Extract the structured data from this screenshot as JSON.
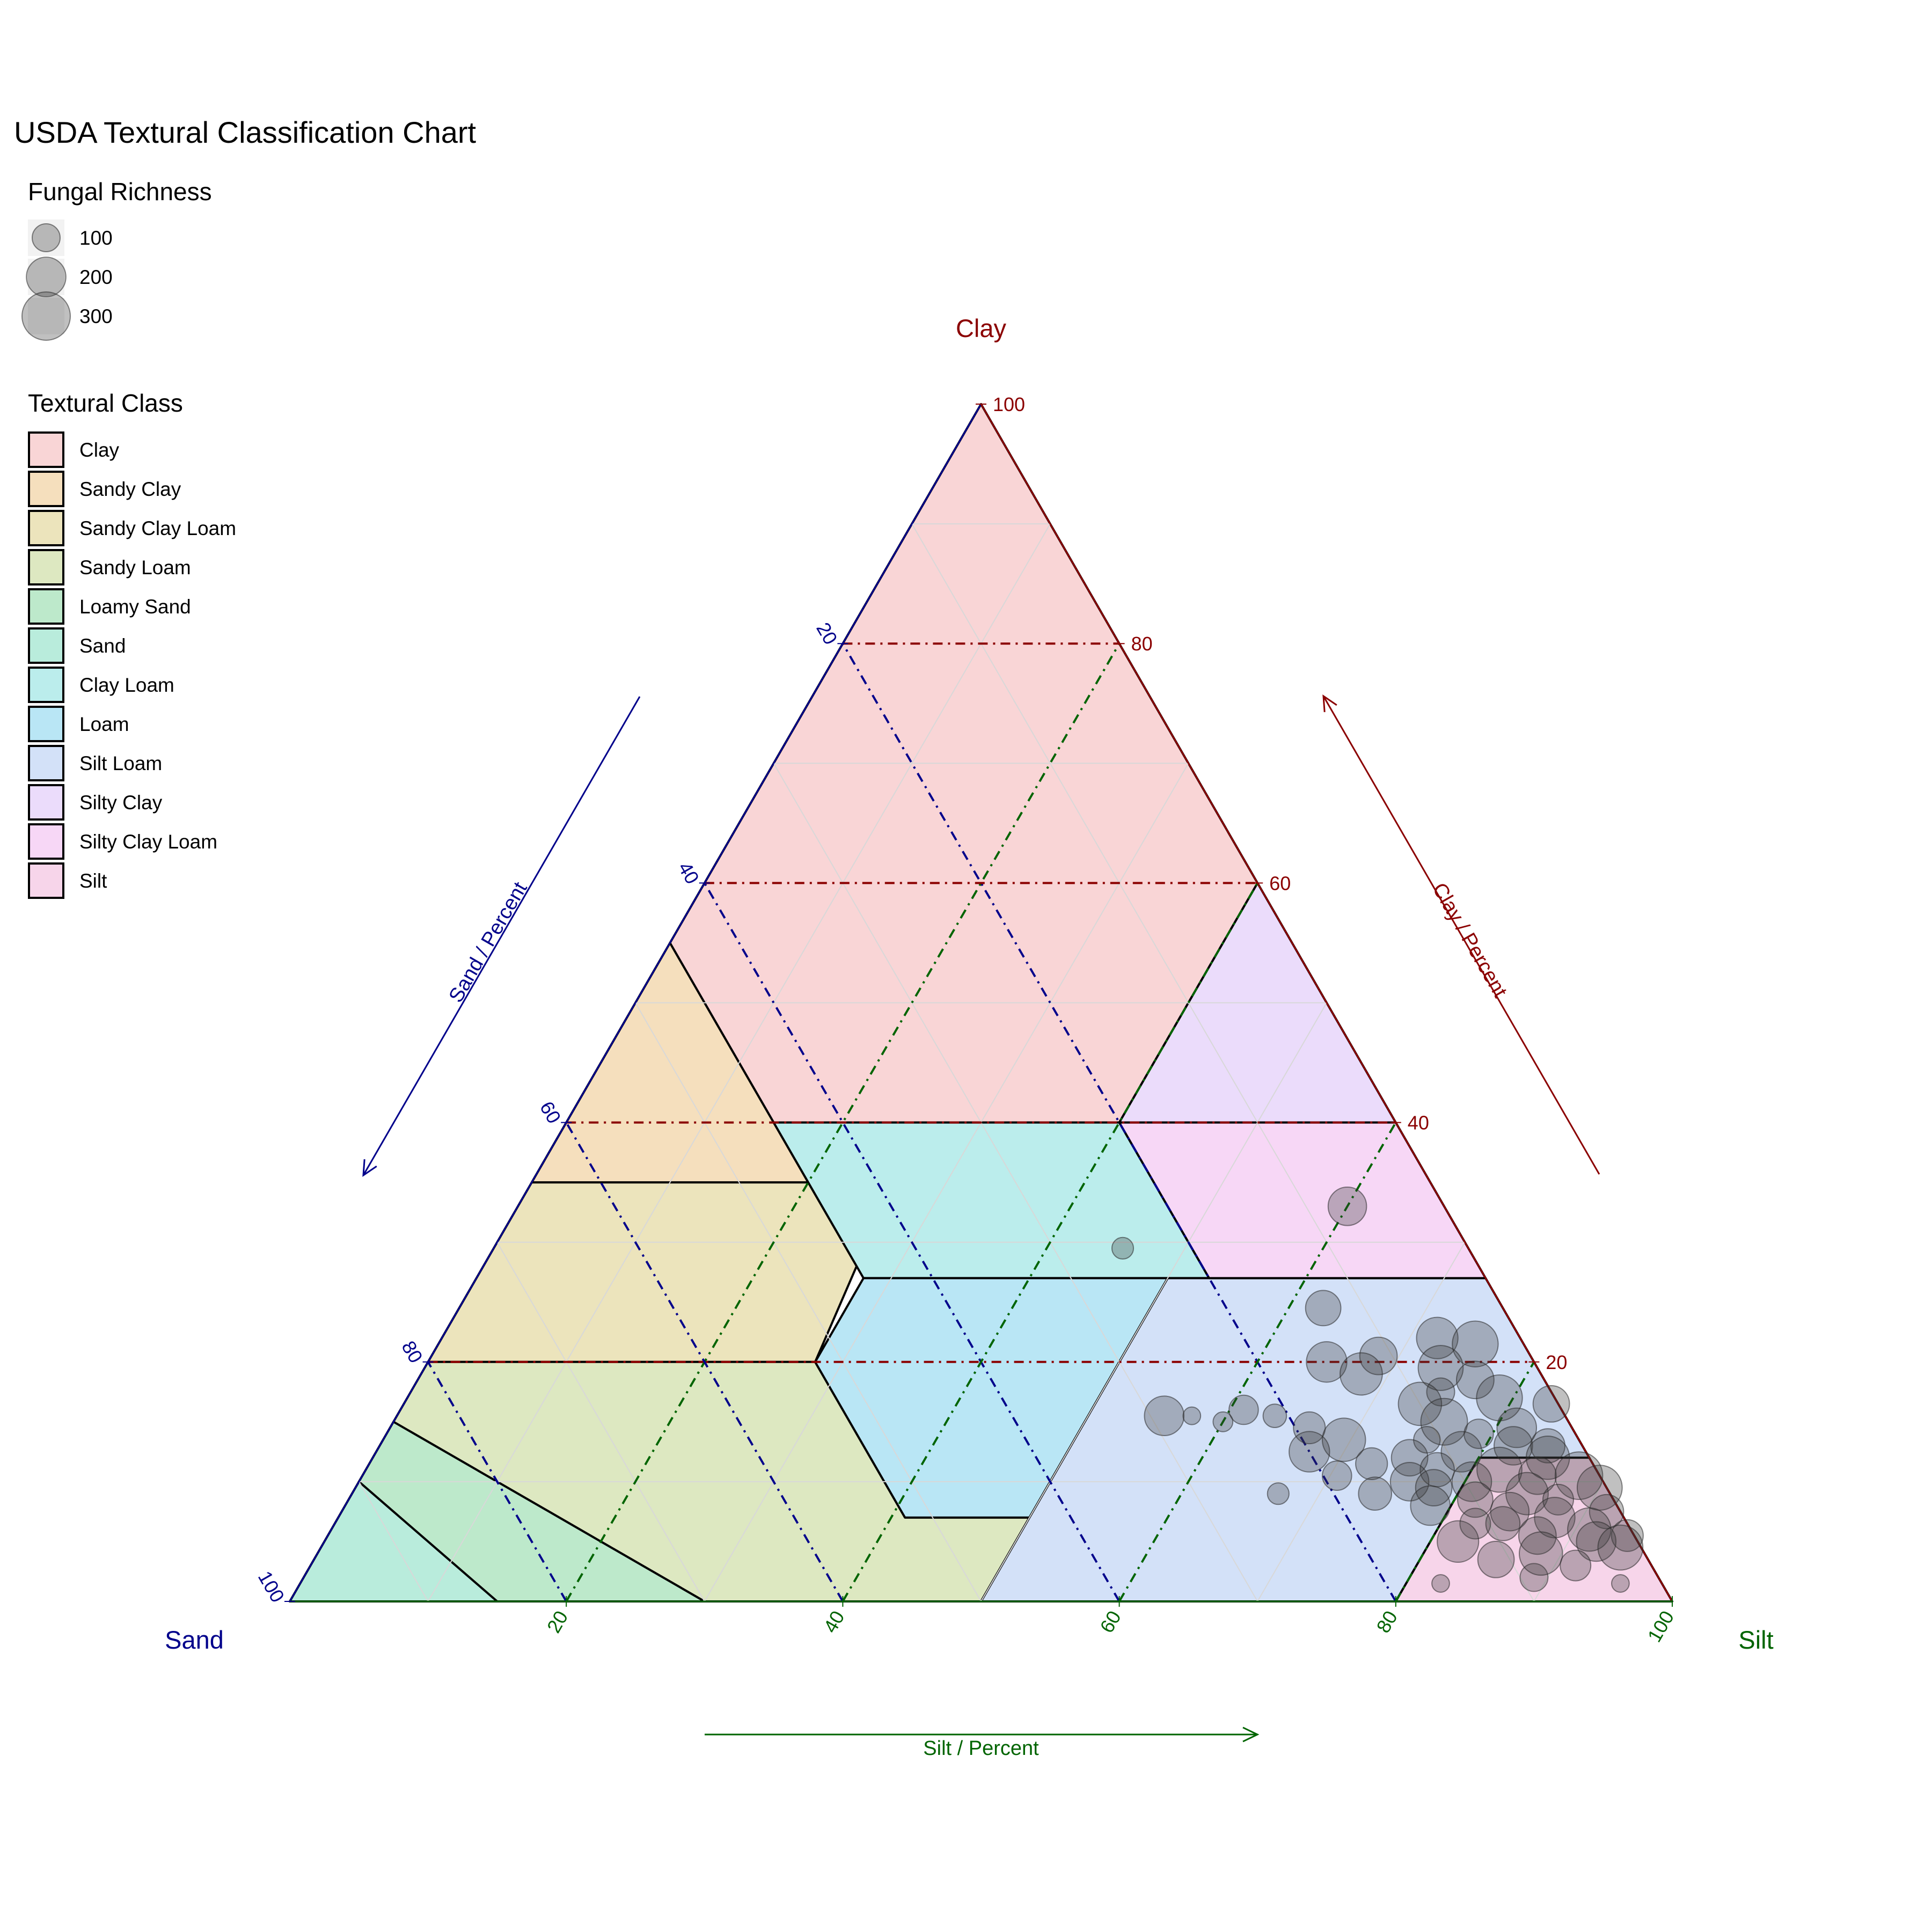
{
  "chart_data": {
    "type": "scatter",
    "subtype": "ternary",
    "title": "USDA Textural Classification Chart",
    "vertices": {
      "top": "Clay",
      "left": "Sand",
      "right": "Silt"
    },
    "axes": {
      "clay": {
        "title": "Clay",
        "arrow_label": "Clay / Percent",
        "color": "#8b0000",
        "ticks": [
          20,
          40,
          60,
          80,
          100
        ]
      },
      "sand": {
        "title": "Sand",
        "arrow_label": "Sand / Percent",
        "color": "#00008b",
        "ticks": [
          20,
          40,
          60,
          80,
          100
        ]
      },
      "silt": {
        "title": "Silt",
        "arrow_label": "Silt / Percent",
        "color": "#006400",
        "ticks": [
          20,
          40,
          60,
          80,
          100
        ]
      }
    },
    "ranges": {
      "clay": [
        0,
        100
      ],
      "sand": [
        0,
        100
      ],
      "silt": [
        0,
        100
      ]
    },
    "grid": true,
    "legend_position": "top-left",
    "size_legend": {
      "title": "Fungal Richness",
      "entries": [
        {
          "label": "100",
          "value": 100
        },
        {
          "label": "200",
          "value": 200
        },
        {
          "label": "300",
          "value": 300
        }
      ]
    },
    "classes_legend": {
      "title": "Textural Class",
      "entries": [
        {
          "label": "Clay",
          "color": "#f9d5d6"
        },
        {
          "label": "Sandy Clay",
          "color": "#f5dfbd"
        },
        {
          "label": "Sandy Clay Loam",
          "color": "#ece4bc"
        },
        {
          "label": "Sandy Loam",
          "color": "#dde8c1"
        },
        {
          "label": "Loamy Sand",
          "color": "#bde9cb"
        },
        {
          "label": "Sand",
          "color": "#b9ecdc"
        },
        {
          "label": "Clay Loam",
          "color": "#bbedec"
        },
        {
          "label": "Loam",
          "color": "#b9e6f5"
        },
        {
          "label": "Silt Loam",
          "color": "#d3e1f8"
        },
        {
          "label": "Silty Clay",
          "color": "#ebdcfb"
        },
        {
          "label": "Silty Clay Loam",
          "color": "#f7d7f6"
        },
        {
          "label": "Silt",
          "color": "#f7d5ea"
        }
      ]
    },
    "classes": [
      {
        "name": "Clay",
        "vertices": [
          [
            100,
            0,
            0
          ],
          [
            55,
            45,
            0
          ],
          [
            40,
            45,
            15
          ],
          [
            40,
            20,
            40
          ],
          [
            60,
            0,
            40
          ]
        ]
      },
      {
        "name": "Sandy Clay",
        "vertices": [
          [
            55,
            45,
            0
          ],
          [
            35,
            65,
            0
          ],
          [
            35,
            45,
            20
          ]
        ]
      },
      {
        "name": "Sandy Clay Loam",
        "vertices": [
          [
            35,
            65,
            0
          ],
          [
            35,
            45,
            20
          ],
          [
            28,
            45,
            27
          ],
          [
            20,
            52,
            28
          ],
          [
            20,
            80,
            0
          ]
        ]
      },
      {
        "name": "Sandy Loam",
        "vertices": [
          [
            20,
            80,
            0
          ],
          [
            20,
            52,
            28
          ],
          [
            7,
            52,
            41
          ],
          [
            7,
            43,
            50
          ],
          [
            0,
            50,
            50
          ],
          [
            0,
            70,
            30
          ],
          [
            15,
            85,
            0
          ]
        ]
      },
      {
        "name": "Loamy Sand",
        "vertices": [
          [
            15,
            85,
            0
          ],
          [
            0,
            70,
            30
          ],
          [
            0,
            85,
            15
          ],
          [
            10,
            90,
            0
          ]
        ]
      },
      {
        "name": "Sand",
        "vertices": [
          [
            10,
            90,
            0
          ],
          [
            0,
            85,
            15
          ],
          [
            0,
            100,
            0
          ]
        ]
      },
      {
        "name": "Clay Loam",
        "vertices": [
          [
            40,
            45,
            15
          ],
          [
            27,
            45,
            28
          ],
          [
            27,
            20,
            53
          ],
          [
            40,
            20,
            40
          ]
        ]
      },
      {
        "name": "Loam",
        "vertices": [
          [
            27,
            45,
            28
          ],
          [
            20,
            52,
            28
          ],
          [
            7,
            52,
            41
          ],
          [
            7,
            43,
            50
          ],
          [
            27,
            23,
            50
          ]
        ]
      },
      {
        "name": "Silt Loam",
        "vertices": [
          [
            27,
            23,
            50
          ],
          [
            27,
            0,
            73
          ],
          [
            12,
            0,
            88
          ],
          [
            12,
            8,
            80
          ],
          [
            0,
            20,
            80
          ],
          [
            0,
            50,
            50
          ],
          [
            7,
            43,
            50
          ]
        ]
      },
      {
        "name": "Silty Clay",
        "vertices": [
          [
            60,
            0,
            40
          ],
          [
            40,
            20,
            40
          ],
          [
            40,
            0,
            60
          ]
        ]
      },
      {
        "name": "Silty Clay Loam",
        "vertices": [
          [
            40,
            20,
            40
          ],
          [
            27,
            20,
            53
          ],
          [
            27,
            0,
            73
          ],
          [
            40,
            0,
            60
          ]
        ]
      },
      {
        "name": "Silt",
        "vertices": [
          [
            12,
            8,
            80
          ],
          [
            12,
            0,
            88
          ],
          [
            0,
            0,
            100
          ],
          [
            0,
            20,
            80
          ]
        ]
      }
    ],
    "points": [
      {
        "clay": 33,
        "sand": 7,
        "silt": 60,
        "richness": 190
      },
      {
        "clay": 29.5,
        "sand": 25,
        "silt": 45.5,
        "richness": 60
      },
      {
        "clay": 24.5,
        "sand": 13,
        "silt": 62.5,
        "richness": 160
      },
      {
        "clay": 22,
        "sand": 6,
        "silt": 72,
        "richness": 220
      },
      {
        "clay": 21.5,
        "sand": 3.5,
        "silt": 75,
        "richness": 270
      },
      {
        "clay": 20.5,
        "sand": 11,
        "silt": 68.5,
        "richness": 180
      },
      {
        "clay": 20,
        "sand": 15,
        "silt": 65,
        "richness": 210
      },
      {
        "clay": 19.5,
        "sand": 7,
        "silt": 73.5,
        "richness": 260
      },
      {
        "clay": 19,
        "sand": 13,
        "silt": 68,
        "richness": 230
      },
      {
        "clay": 18.5,
        "sand": 5,
        "silt": 76.5,
        "richness": 180
      },
      {
        "clay": 17.5,
        "sand": 8,
        "silt": 74.5,
        "richness": 100
      },
      {
        "clay": 17,
        "sand": 4,
        "silt": 79,
        "richness": 270
      },
      {
        "clay": 16.5,
        "sand": 10,
        "silt": 73.5,
        "richness": 240
      },
      {
        "clay": 16,
        "sand": 23,
        "silt": 61,
        "richness": 110
      },
      {
        "clay": 15.5,
        "sand": 29,
        "silt": 55.5,
        "richness": 200
      },
      {
        "clay": 15.5,
        "sand": 21,
        "silt": 63.5,
        "richness": 70
      },
      {
        "clay": 15.5,
        "sand": 27,
        "silt": 57.5,
        "richness": 40
      },
      {
        "clay": 15,
        "sand": 9,
        "silt": 76,
        "richness": 280
      },
      {
        "clay": 15,
        "sand": 25,
        "silt": 60,
        "richness": 50
      },
      {
        "clay": 14.5,
        "sand": 4,
        "silt": 81.5,
        "richness": 200
      },
      {
        "clay": 14.5,
        "sand": 19,
        "silt": 66.5,
        "richness": 130
      },
      {
        "clay": 14,
        "sand": 7,
        "silt": 79,
        "richness": 110
      },
      {
        "clay": 13.5,
        "sand": 11,
        "silt": 75.5,
        "richness": 90
      },
      {
        "clay": 13.5,
        "sand": 17,
        "silt": 69.5,
        "richness": 240
      },
      {
        "clay": 13,
        "sand": 5,
        "silt": 82,
        "richness": 190
      },
      {
        "clay": 13,
        "sand": 2.5,
        "silt": 84.5,
        "richness": 150
      },
      {
        "clay": 12.5,
        "sand": 9,
        "silt": 78.5,
        "richness": 210
      },
      {
        "clay": 12.5,
        "sand": 20,
        "silt": 67.5,
        "richness": 210
      },
      {
        "clay": 12,
        "sand": 13,
        "silt": 75,
        "richness": 170
      },
      {
        "clay": 12,
        "sand": 3,
        "silt": 85,
        "richness": 240
      },
      {
        "clay": 11.5,
        "sand": 16,
        "silt": 72.5,
        "richness": 130
      },
      {
        "clay": 11,
        "sand": 7,
        "silt": 82,
        "richness": 260
      },
      {
        "clay": 11,
        "sand": 11.5,
        "silt": 77.5,
        "richness": 150
      },
      {
        "clay": 10.5,
        "sand": 1.5,
        "silt": 88,
        "richness": 290
      },
      {
        "clay": 10.5,
        "sand": 4.5,
        "silt": 85,
        "richness": 180
      },
      {
        "clay": 10,
        "sand": 14,
        "silt": 76,
        "richness": 190
      },
      {
        "clay": 10,
        "sand": 9.5,
        "silt": 80.5,
        "richness": 200
      },
      {
        "clay": 9.5,
        "sand": 12.5,
        "silt": 78,
        "richness": 170
      },
      {
        "clay": 9.5,
        "sand": 0.5,
        "silt": 90,
        "richness": 260
      },
      {
        "clay": 9,
        "sand": 17,
        "silt": 74,
        "richness": 140
      },
      {
        "clay": 9,
        "sand": 6,
        "silt": 85,
        "richness": 230
      },
      {
        "clay": 8.5,
        "sand": 10,
        "silt": 81.5,
        "richness": 160
      },
      {
        "clay": 8.5,
        "sand": 4,
        "silt": 87.5,
        "richness": 120
      },
      {
        "clay": 8,
        "sand": 13.5,
        "silt": 78.5,
        "richness": 200
      },
      {
        "clay": 7.5,
        "sand": 8,
        "silt": 84.5,
        "richness": 190
      },
      {
        "clay": 7.5,
        "sand": 1,
        "silt": 91.5,
        "richness": 150
      },
      {
        "clay": 7,
        "sand": 5,
        "silt": 88,
        "richness": 210
      },
      {
        "clay": 6.5,
        "sand": 11,
        "silt": 82.5,
        "richness": 120
      },
      {
        "clay": 6,
        "sand": 3,
        "silt": 91,
        "richness": 240
      },
      {
        "clay": 5.5,
        "sand": 7,
        "silt": 87.5,
        "richness": 180
      },
      {
        "clay": 5.5,
        "sand": 0.5,
        "silt": 94,
        "richness": 130
      },
      {
        "clay": 5,
        "sand": 13,
        "silt": 82,
        "richness": 220
      },
      {
        "clay": 5,
        "sand": 3,
        "silt": 92,
        "richness": 200
      },
      {
        "clay": 4.5,
        "sand": 1.5,
        "silt": 94,
        "richness": 260
      },
      {
        "clay": 3.5,
        "sand": 11,
        "silt": 85.5,
        "richness": 170
      },
      {
        "clay": 3,
        "sand": 5.5,
        "silt": 91.5,
        "richness": 120
      },
      {
        "clay": 2,
        "sand": 9,
        "silt": 89,
        "richness": 100
      },
      {
        "clay": 1.5,
        "sand": 16,
        "silt": 82.5,
        "richness": 40
      },
      {
        "clay": 1.5,
        "sand": 3,
        "silt": 95.5,
        "richness": 40
      },
      {
        "clay": 16.5,
        "sand": 0.5,
        "silt": 83,
        "richness": 170
      },
      {
        "clay": 6.5,
        "sand": 9,
        "silt": 84.5,
        "richness": 150
      },
      {
        "clay": 10.5,
        "sand": 19,
        "silt": 70.5,
        "richness": 110
      },
      {
        "clay": 9,
        "sand": 24,
        "silt": 67,
        "richness": 60
      },
      {
        "clay": 4,
        "sand": 7.5,
        "silt": 88.5,
        "richness": 240
      }
    ]
  }
}
